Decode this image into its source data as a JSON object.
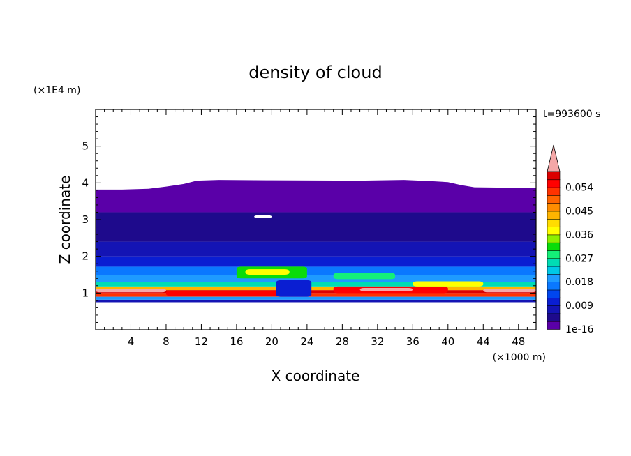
{
  "chart_data": {
    "type": "heatmap",
    "title": "density of cloud",
    "time_label": "t=993600 s",
    "xlabel": "X coordinate",
    "ylabel": "Z coordinate",
    "x_unit": "(×1000 m)",
    "y_unit": "(×1E4 m)",
    "xlim": [
      0,
      50
    ],
    "ylim": [
      0,
      6
    ],
    "x_ticks": [
      {
        "value": 4,
        "label": "4"
      },
      {
        "value": 8,
        "label": "8"
      },
      {
        "value": 12,
        "label": "12"
      },
      {
        "value": 16,
        "label": "16"
      },
      {
        "value": 20,
        "label": "20"
      },
      {
        "value": 24,
        "label": "24"
      },
      {
        "value": 28,
        "label": "28"
      },
      {
        "value": 32,
        "label": "32"
      },
      {
        "value": 36,
        "label": "36"
      },
      {
        "value": 40,
        "label": "40"
      },
      {
        "value": 44,
        "label": "44"
      },
      {
        "value": 48,
        "label": "48"
      }
    ],
    "y_ticks": [
      {
        "value": 1,
        "label": "1"
      },
      {
        "value": 2,
        "label": "2"
      },
      {
        "value": 3,
        "label": "3"
      },
      {
        "value": 4,
        "label": "4"
      },
      {
        "value": 5,
        "label": "5"
      }
    ],
    "colorbar": {
      "extend": "max",
      "levels": [
        {
          "value": "1e-16",
          "color": "#5a00a8"
        },
        {
          "value": "0.003",
          "color": "#1e0a8c"
        },
        {
          "value": "0.006",
          "color": "#1414b4"
        },
        {
          "value": "0.009",
          "color": "#0a1ed2"
        },
        {
          "value": "0.012",
          "color": "#0046ee"
        },
        {
          "value": "0.015",
          "color": "#0a78ff"
        },
        {
          "value": "0.018",
          "color": "#1e9bff"
        },
        {
          "value": "0.021",
          "color": "#00c8e6"
        },
        {
          "value": "0.024",
          "color": "#00dcb4"
        },
        {
          "value": "0.027",
          "color": "#14f078"
        },
        {
          "value": "0.030",
          "color": "#0adc0a"
        },
        {
          "value": "0.033",
          "color": "#8cf000"
        },
        {
          "value": "0.036",
          "color": "#ffff00"
        },
        {
          "value": "0.039",
          "color": "#ffdc00"
        },
        {
          "value": "0.042",
          "color": "#ffb400"
        },
        {
          "value": "0.045",
          "color": "#ff8c00"
        },
        {
          "value": "0.048",
          "color": "#ff6400"
        },
        {
          "value": "0.051",
          "color": "#ff3200"
        },
        {
          "value": "0.054",
          "color": "#ff0000"
        },
        {
          "value": "0.057",
          "color": "#dc0000"
        }
      ],
      "over_color": "#f4a7a7",
      "tick_labels": [
        "1e-16",
        "0.009",
        "0.018",
        "0.027",
        "0.036",
        "0.045",
        "0.054"
      ]
    },
    "cloud_top_profile": [
      [
        0,
        3.82
      ],
      [
        3,
        3.82
      ],
      [
        6,
        3.84
      ],
      [
        8,
        3.9
      ],
      [
        10,
        3.97
      ],
      [
        11.5,
        4.06
      ],
      [
        14,
        4.08
      ],
      [
        20,
        4.07
      ],
      [
        30,
        4.06
      ],
      [
        35,
        4.08
      ],
      [
        38,
        4.05
      ],
      [
        40,
        4.02
      ],
      [
        41.5,
        3.94
      ],
      [
        43,
        3.88
      ],
      [
        50,
        3.86
      ]
    ],
    "cloud_base": 0.75,
    "bands": [
      {
        "z": [
          0.75,
          0.82
        ],
        "level": 2
      },
      {
        "z": [
          0.82,
          0.9
        ],
        "level": 6
      },
      {
        "z": [
          0.9,
          1.0
        ],
        "level": 17
      },
      {
        "z": [
          1.0,
          1.08
        ],
        "level": 19
      },
      {
        "z": [
          1.08,
          1.18
        ],
        "level": 14
      },
      {
        "z": [
          1.18,
          1.3
        ],
        "level": 8
      },
      {
        "z": [
          1.3,
          1.5
        ],
        "level": 6
      },
      {
        "z": [
          1.5,
          1.72
        ],
        "level": 5
      },
      {
        "z": [
          1.72,
          2.0
        ],
        "level": 3
      },
      {
        "z": [
          2.0,
          2.4
        ],
        "level": 2
      },
      {
        "z": [
          2.4,
          3.2
        ],
        "level": 1
      },
      {
        "z": [
          3.2,
          4.1
        ],
        "level": 0
      }
    ],
    "patches": [
      {
        "x": [
          0,
          8
        ],
        "z": [
          1.02,
          1.12
        ],
        "level": 20
      },
      {
        "x": [
          8,
          22
        ],
        "z": [
          0.92,
          1.06
        ],
        "level": 18
      },
      {
        "x": [
          27,
          40
        ],
        "z": [
          1.0,
          1.18
        ],
        "level": 18
      },
      {
        "x": [
          30,
          36
        ],
        "z": [
          1.05,
          1.14
        ],
        "level": 20
      },
      {
        "x": [
          44,
          50
        ],
        "z": [
          1.02,
          1.12
        ],
        "level": 20
      },
      {
        "x": [
          16,
          24
        ],
        "z": [
          1.4,
          1.72
        ],
        "level": 10
      },
      {
        "x": [
          17,
          22
        ],
        "z": [
          1.5,
          1.65
        ],
        "level": 12
      },
      {
        "x": [
          27,
          34
        ],
        "z": [
          1.38,
          1.55
        ],
        "level": 9
      },
      {
        "x": [
          20.5,
          24.5
        ],
        "z": [
          0.9,
          1.35
        ],
        "level": 3
      },
      {
        "x": [
          36,
          44
        ],
        "z": [
          1.18,
          1.32
        ],
        "level": 12
      },
      {
        "x": [
          18,
          20
        ],
        "z": [
          3.04,
          3.12
        ],
        "level": -1
      }
    ]
  }
}
